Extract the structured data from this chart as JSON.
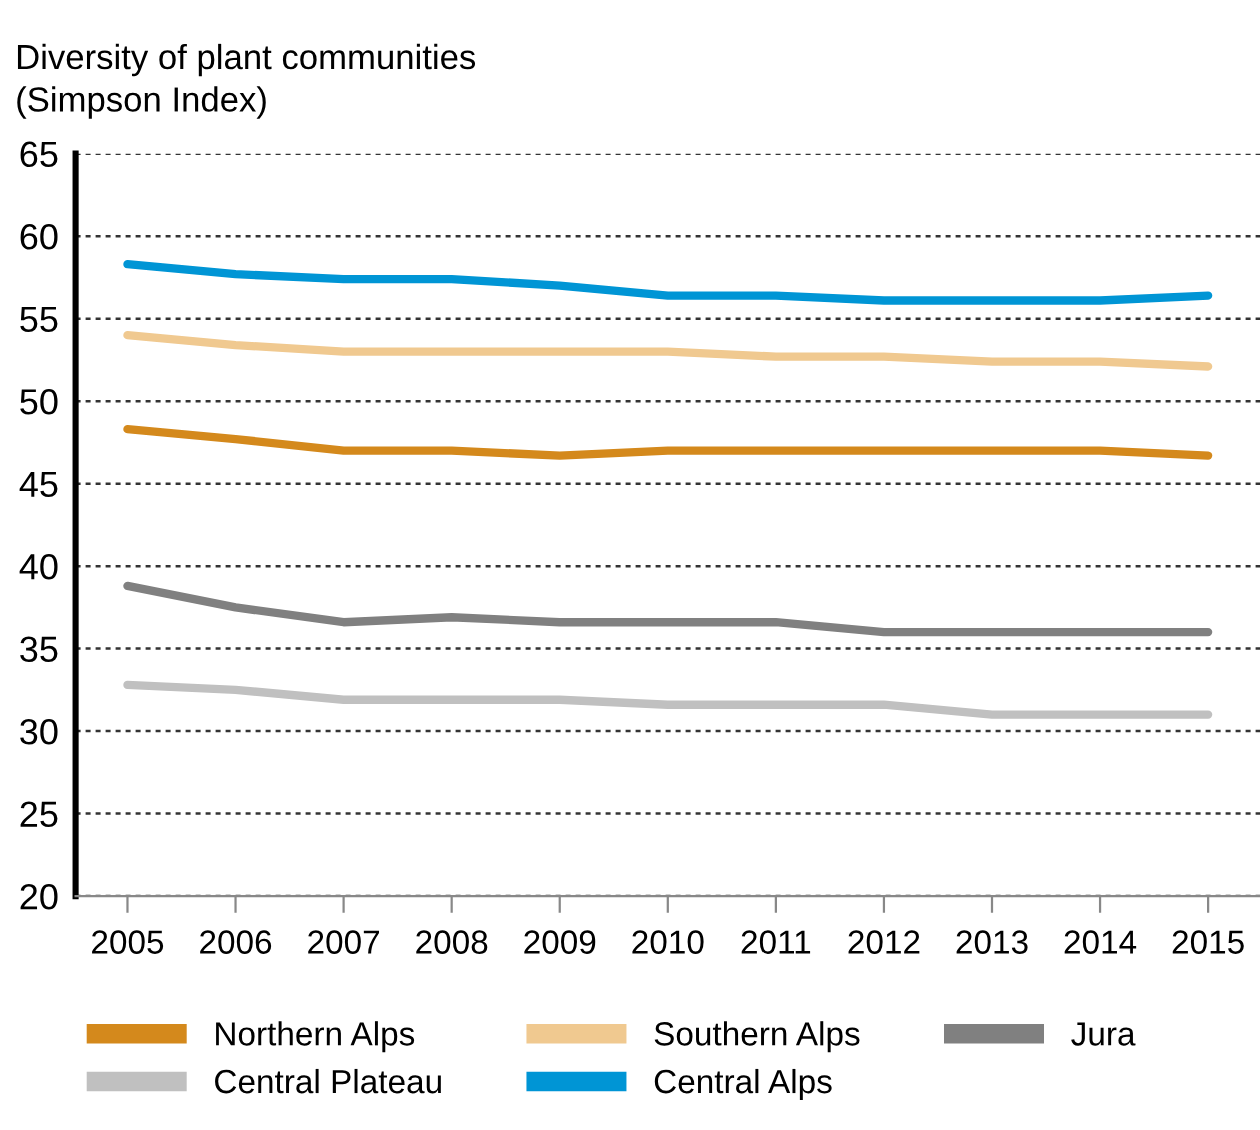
{
  "chart_data": {
    "type": "line",
    "ylabel": "Diversity of plant communities\n(Simpson Index)",
    "categories": [
      "2005",
      "2006",
      "2007",
      "2008",
      "2009",
      "2010",
      "2011",
      "2012",
      "2013",
      "2014",
      "2015"
    ],
    "series": [
      {
        "name": "Northern Alps",
        "color": "#d4891c",
        "values": [
          48.3,
          47.7,
          47.0,
          47.0,
          46.7,
          47.0,
          47.0,
          47.0,
          47.0,
          47.0,
          46.7
        ]
      },
      {
        "name": "Southern Alps",
        "color": "#f0c990",
        "values": [
          54.0,
          53.4,
          53.0,
          53.0,
          53.0,
          53.0,
          52.7,
          52.7,
          52.4,
          52.4,
          52.1
        ]
      },
      {
        "name": "Jura",
        "color": "#808080",
        "values": [
          38.8,
          37.5,
          36.6,
          36.9,
          36.6,
          36.6,
          36.6,
          36.0,
          36.0,
          36.0,
          36.0
        ]
      },
      {
        "name": "Central Plateau",
        "color": "#c0c0c0",
        "values": [
          32.8,
          32.5,
          31.9,
          31.9,
          31.9,
          31.6,
          31.6,
          31.6,
          31.0,
          31.0,
          31.0
        ]
      },
      {
        "name": "Central Alps",
        "color": "#0095d5",
        "values": [
          58.3,
          57.7,
          57.4,
          57.4,
          57.0,
          56.4,
          56.4,
          56.1,
          56.1,
          56.1,
          56.4
        ]
      }
    ],
    "ylim": [
      20,
      65
    ],
    "yticks": [
      20,
      25,
      30,
      35,
      40,
      45,
      50,
      55,
      60,
      65
    ],
    "grid": "y",
    "legend": "bottom",
    "marker": "none",
    "line_style": "solid"
  }
}
